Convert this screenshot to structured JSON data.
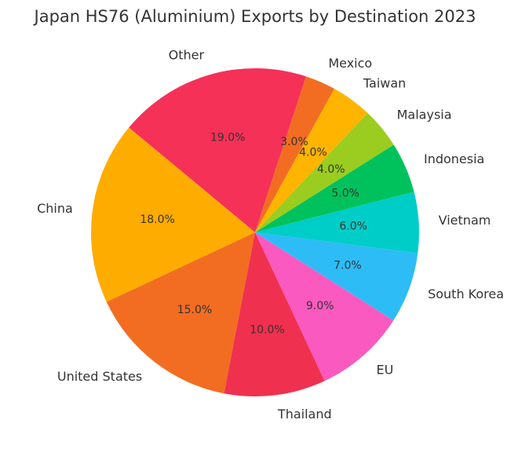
{
  "chart_data": {
    "type": "pie",
    "title": "Japan HS76 (Aluminium) Exports by Destination 2023",
    "categories": [
      "Other",
      "China",
      "United States",
      "Thailand",
      "EU",
      "South Korea",
      "Vietnam",
      "Indonesia",
      "Malaysia",
      "Taiwan",
      "Mexico"
    ],
    "values": [
      19,
      18,
      15,
      10,
      9,
      7,
      6,
      5,
      4,
      4,
      3
    ],
    "value_labels": [
      "19.0%",
      "18.0%",
      "15.0%",
      "10.0%",
      "9.0%",
      "7.0%",
      "6.0%",
      "5.0%",
      "4.0%",
      "4.0%",
      "3.0%"
    ],
    "colors": [
      "#f53158",
      "#ffac00",
      "#f26d21",
      "#f0304f",
      "#fa5ac0",
      "#2ebcf7",
      "#00cdc8",
      "#00c25c",
      "#9acd1f",
      "#ffb400",
      "#f26d21"
    ]
  }
}
